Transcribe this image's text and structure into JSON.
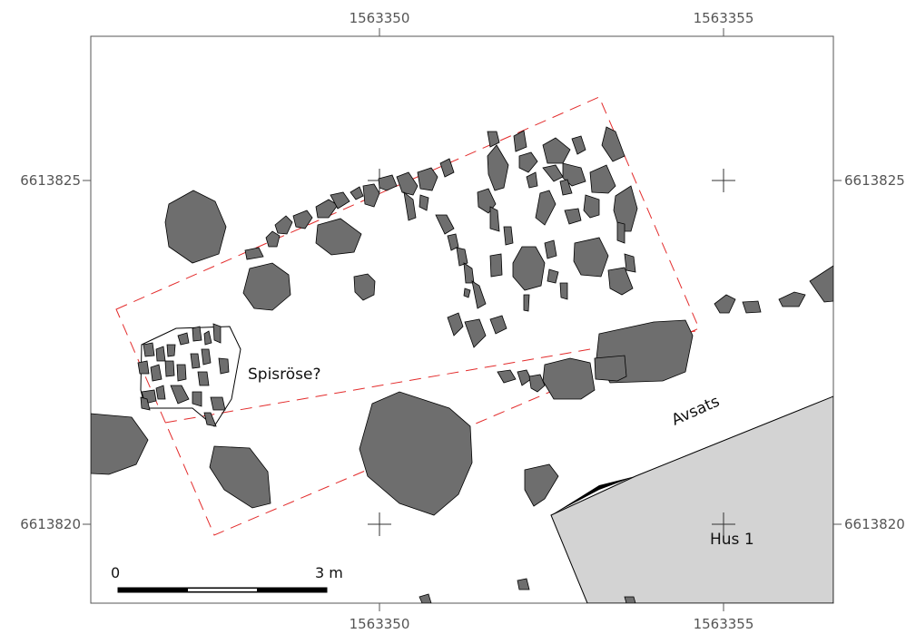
{
  "map": {
    "coords": {
      "x_top_left": "1563350",
      "x_top_right": "1563355",
      "x_bottom_left": "1563350",
      "x_bottom_right": "1563355",
      "y_left_upper": "6613825",
      "y_left_lower": "6613820",
      "y_right_upper": "6613825",
      "y_right_lower": "6613820"
    },
    "labels": {
      "hearth_cairn": "Spisröse?",
      "terrace": "Avsats",
      "house": "Hus 1"
    },
    "scalebar": {
      "start": "0",
      "end": "3 m"
    },
    "colors": {
      "stone_fill": "#6e6e6e",
      "house_fill": "#d3d3d3",
      "excavation_line": "#e32b2b",
      "frame": "#555555"
    }
  }
}
